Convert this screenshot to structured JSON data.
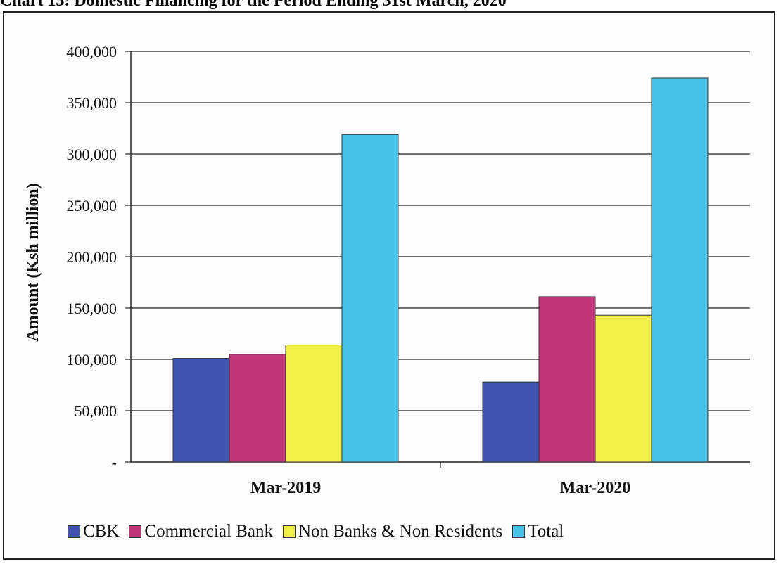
{
  "page": {
    "title": "Chart 13: Domestic Financing for the Period Ending 31st March, 2020"
  },
  "colors": {
    "CBK": "#3f54b0",
    "Commercial Bank": "#c2357a",
    "Non Banks & Non Residents": "#f4f04a",
    "Total": "#45c3e8"
  },
  "chart_data": {
    "type": "bar",
    "categories": [
      "Mar-2019",
      "Mar-2020"
    ],
    "series": [
      {
        "name": "CBK",
        "values": [
          101000,
          78000
        ]
      },
      {
        "name": "Commercial Bank",
        "values": [
          105000,
          161000
        ]
      },
      {
        "name": "Non Banks & Non Residents",
        "values": [
          114000,
          143000
        ]
      },
      {
        "name": "Total",
        "values": [
          319000,
          374000
        ]
      }
    ],
    "ylabel": "Amount  (Ksh million)",
    "ylim": [
      0,
      400000
    ],
    "yticks": [
      0,
      50000,
      100000,
      150000,
      200000,
      250000,
      300000,
      350000,
      400000
    ],
    "ytick_labels": [
      "-",
      "50,000",
      "100,000",
      "150,000",
      "200,000",
      "250,000",
      "300,000",
      "350,000",
      "400,000"
    ],
    "grid": true,
    "legend_position": "bottom"
  }
}
